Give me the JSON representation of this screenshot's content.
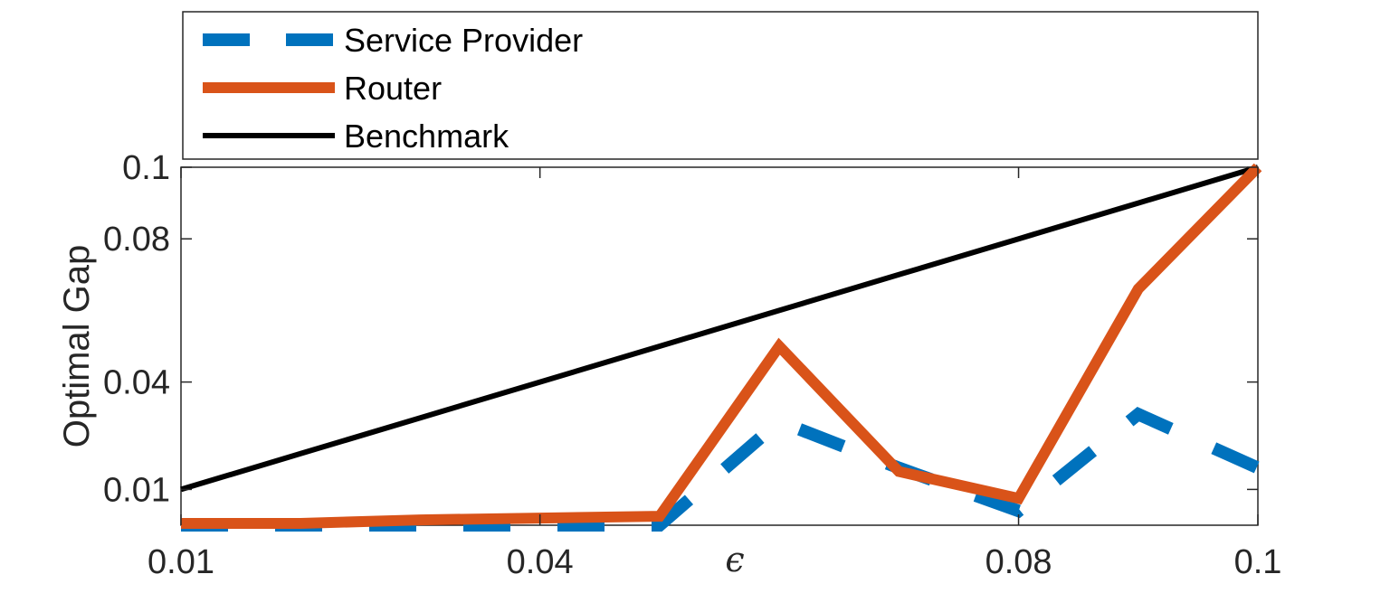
{
  "chart_data": {
    "type": "line",
    "title": "",
    "xlabel": "ϵ",
    "ylabel": "Optimal Gap",
    "xlim": [
      0.01,
      0.1
    ],
    "ylim": [
      0,
      0.1
    ],
    "x_ticks": [
      {
        "value": 0.01,
        "label": "0.01"
      },
      {
        "value": 0.04,
        "label": "0.04"
      },
      {
        "value": 0.08,
        "label": "0.08"
      },
      {
        "value": 0.1,
        "label": "0.1"
      }
    ],
    "y_ticks": [
      {
        "value": 0.01,
        "label": "0.01"
      },
      {
        "value": 0.04,
        "label": "0.04"
      },
      {
        "value": 0.08,
        "label": "0.08"
      },
      {
        "value": 0.1,
        "label": "0.1"
      }
    ],
    "x": [
      0.01,
      0.02,
      0.03,
      0.04,
      0.05,
      0.06,
      0.07,
      0.08,
      0.09,
      0.1
    ],
    "series": [
      {
        "name": "Service Provider",
        "style": "dashed",
        "color": "#0072BD",
        "values": [
          0.0,
          0.0,
          0.0,
          0.0,
          0.0,
          0.029,
          0.016,
          0.004,
          0.031,
          0.016
        ]
      },
      {
        "name": "Router",
        "style": "solid",
        "color": "#D95319",
        "values": [
          0.0005,
          0.0005,
          0.0015,
          0.002,
          0.0025,
          0.05,
          0.015,
          0.0075,
          0.066,
          0.1
        ]
      },
      {
        "name": "Benchmark",
        "style": "solid",
        "color": "#000000",
        "values": [
          0.01,
          0.02,
          0.03,
          0.04,
          0.05,
          0.06,
          0.07,
          0.08,
          0.09,
          0.1
        ]
      }
    ],
    "legend_position": "top",
    "grid": false
  }
}
